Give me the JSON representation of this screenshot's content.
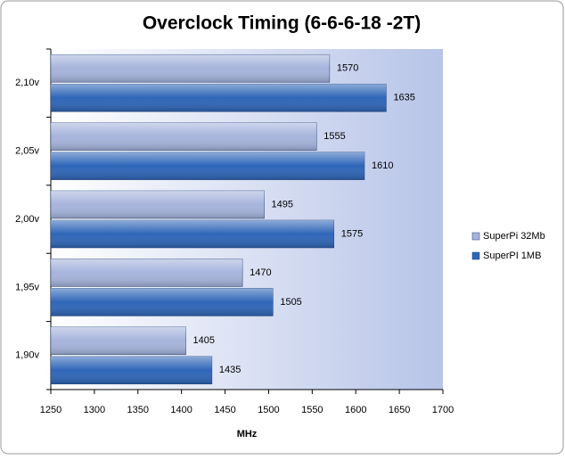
{
  "chart_data": {
    "type": "bar",
    "orientation": "horizontal",
    "title": "Overclock Timing (6-6-6-18 -2T)",
    "categories": [
      "2,10v",
      "2,05v",
      "2,00v",
      "1,95v",
      "1,90v"
    ],
    "series": [
      {
        "name": "SuperPi 32Mb",
        "color": "#a6b4dc",
        "values": [
          1570,
          1555,
          1495,
          1470,
          1405
        ]
      },
      {
        "name": "SuperPI 1MB",
        "color": "#2f66b8",
        "values": [
          1635,
          1610,
          1575,
          1505,
          1435
        ]
      }
    ],
    "x_label": "MHz",
    "xlim": [
      1250,
      1700
    ],
    "xticks": [
      1250,
      1300,
      1350,
      1400,
      1450,
      1500,
      1550,
      1600,
      1650,
      1700
    ],
    "legend": "right"
  }
}
